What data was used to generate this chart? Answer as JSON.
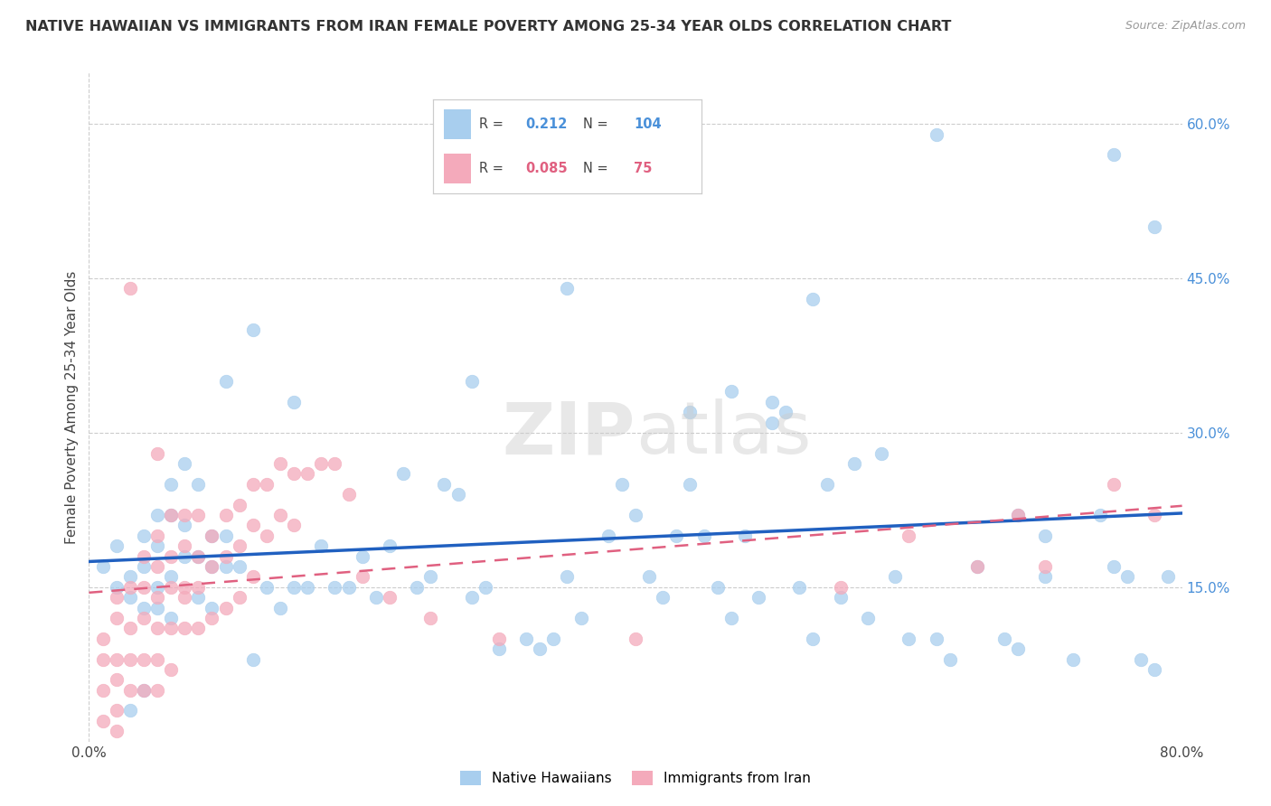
{
  "title": "NATIVE HAWAIIAN VS IMMIGRANTS FROM IRAN FEMALE POVERTY AMONG 25-34 YEAR OLDS CORRELATION CHART",
  "source": "Source: ZipAtlas.com",
  "ylabel": "Female Poverty Among 25-34 Year Olds",
  "xlim": [
    0.0,
    0.8
  ],
  "ylim": [
    0.0,
    0.65
  ],
  "ytick_right_labels": [
    "",
    "15.0%",
    "30.0%",
    "45.0%",
    "60.0%"
  ],
  "ytick_right_vals": [
    0.0,
    0.15,
    0.3,
    0.45,
    0.6
  ],
  "R_blue": 0.212,
  "N_blue": 104,
  "R_pink": 0.085,
  "N_pink": 75,
  "blue_color": "#A8CEEE",
  "pink_color": "#F4AABB",
  "blue_line_color": "#2060C0",
  "pink_line_color": "#E06080",
  "legend_label_blue": "Native Hawaiians",
  "legend_label_pink": "Immigrants from Iran",
  "blue_x": [
    0.01,
    0.02,
    0.02,
    0.03,
    0.03,
    0.04,
    0.04,
    0.04,
    0.05,
    0.05,
    0.05,
    0.05,
    0.06,
    0.06,
    0.06,
    0.07,
    0.07,
    0.07,
    0.08,
    0.08,
    0.08,
    0.09,
    0.09,
    0.09,
    0.1,
    0.1,
    0.11,
    0.12,
    0.13,
    0.14,
    0.15,
    0.16,
    0.17,
    0.18,
    0.19,
    0.2,
    0.21,
    0.22,
    0.23,
    0.24,
    0.25,
    0.26,
    0.27,
    0.28,
    0.29,
    0.3,
    0.32,
    0.33,
    0.34,
    0.35,
    0.36,
    0.38,
    0.39,
    0.4,
    0.41,
    0.42,
    0.43,
    0.44,
    0.45,
    0.46,
    0.47,
    0.48,
    0.49,
    0.5,
    0.5,
    0.51,
    0.52,
    0.53,
    0.54,
    0.55,
    0.56,
    0.57,
    0.58,
    0.59,
    0.6,
    0.62,
    0.63,
    0.65,
    0.67,
    0.68,
    0.7,
    0.72,
    0.74,
    0.75,
    0.76,
    0.77,
    0.78,
    0.79,
    0.62,
    0.68,
    0.7,
    0.75,
    0.78,
    0.15,
    0.28,
    0.35,
    0.53,
    0.44,
    0.47,
    0.1,
    0.12,
    0.06,
    0.04,
    0.03
  ],
  "blue_y": [
    0.17,
    0.19,
    0.15,
    0.14,
    0.16,
    0.2,
    0.17,
    0.13,
    0.22,
    0.19,
    0.15,
    0.13,
    0.25,
    0.22,
    0.16,
    0.27,
    0.21,
    0.18,
    0.25,
    0.18,
    0.14,
    0.2,
    0.17,
    0.13,
    0.35,
    0.17,
    0.17,
    0.4,
    0.15,
    0.13,
    0.15,
    0.15,
    0.19,
    0.15,
    0.15,
    0.18,
    0.14,
    0.19,
    0.26,
    0.15,
    0.16,
    0.25,
    0.24,
    0.14,
    0.15,
    0.09,
    0.1,
    0.09,
    0.1,
    0.16,
    0.12,
    0.2,
    0.25,
    0.22,
    0.16,
    0.14,
    0.2,
    0.25,
    0.2,
    0.15,
    0.12,
    0.2,
    0.14,
    0.33,
    0.31,
    0.32,
    0.15,
    0.1,
    0.25,
    0.14,
    0.27,
    0.12,
    0.28,
    0.16,
    0.1,
    0.1,
    0.08,
    0.17,
    0.1,
    0.09,
    0.16,
    0.08,
    0.22,
    0.17,
    0.16,
    0.08,
    0.07,
    0.16,
    0.59,
    0.22,
    0.2,
    0.57,
    0.5,
    0.33,
    0.35,
    0.44,
    0.43,
    0.32,
    0.34,
    0.2,
    0.08,
    0.12,
    0.05,
    0.03
  ],
  "pink_x": [
    0.01,
    0.01,
    0.01,
    0.01,
    0.02,
    0.02,
    0.02,
    0.02,
    0.02,
    0.02,
    0.03,
    0.03,
    0.03,
    0.03,
    0.04,
    0.04,
    0.04,
    0.04,
    0.04,
    0.05,
    0.05,
    0.05,
    0.05,
    0.05,
    0.05,
    0.06,
    0.06,
    0.06,
    0.06,
    0.06,
    0.07,
    0.07,
    0.07,
    0.07,
    0.08,
    0.08,
    0.08,
    0.08,
    0.09,
    0.09,
    0.09,
    0.1,
    0.1,
    0.1,
    0.11,
    0.11,
    0.11,
    0.12,
    0.12,
    0.12,
    0.13,
    0.13,
    0.14,
    0.14,
    0.15,
    0.15,
    0.16,
    0.17,
    0.18,
    0.19,
    0.2,
    0.22,
    0.25,
    0.3,
    0.4,
    0.55,
    0.6,
    0.65,
    0.68,
    0.7,
    0.75,
    0.78,
    0.03,
    0.05,
    0.07
  ],
  "pink_y": [
    0.1,
    0.08,
    0.05,
    0.02,
    0.14,
    0.12,
    0.08,
    0.06,
    0.03,
    0.01,
    0.15,
    0.11,
    0.08,
    0.05,
    0.18,
    0.15,
    0.12,
    0.08,
    0.05,
    0.2,
    0.17,
    0.14,
    0.11,
    0.08,
    0.05,
    0.22,
    0.18,
    0.15,
    0.11,
    0.07,
    0.22,
    0.19,
    0.15,
    0.11,
    0.22,
    0.18,
    0.15,
    0.11,
    0.2,
    0.17,
    0.12,
    0.22,
    0.18,
    0.13,
    0.23,
    0.19,
    0.14,
    0.25,
    0.21,
    0.16,
    0.25,
    0.2,
    0.27,
    0.22,
    0.26,
    0.21,
    0.26,
    0.27,
    0.27,
    0.24,
    0.16,
    0.14,
    0.12,
    0.1,
    0.1,
    0.15,
    0.2,
    0.17,
    0.22,
    0.17,
    0.25,
    0.22,
    0.44,
    0.28,
    0.14
  ]
}
